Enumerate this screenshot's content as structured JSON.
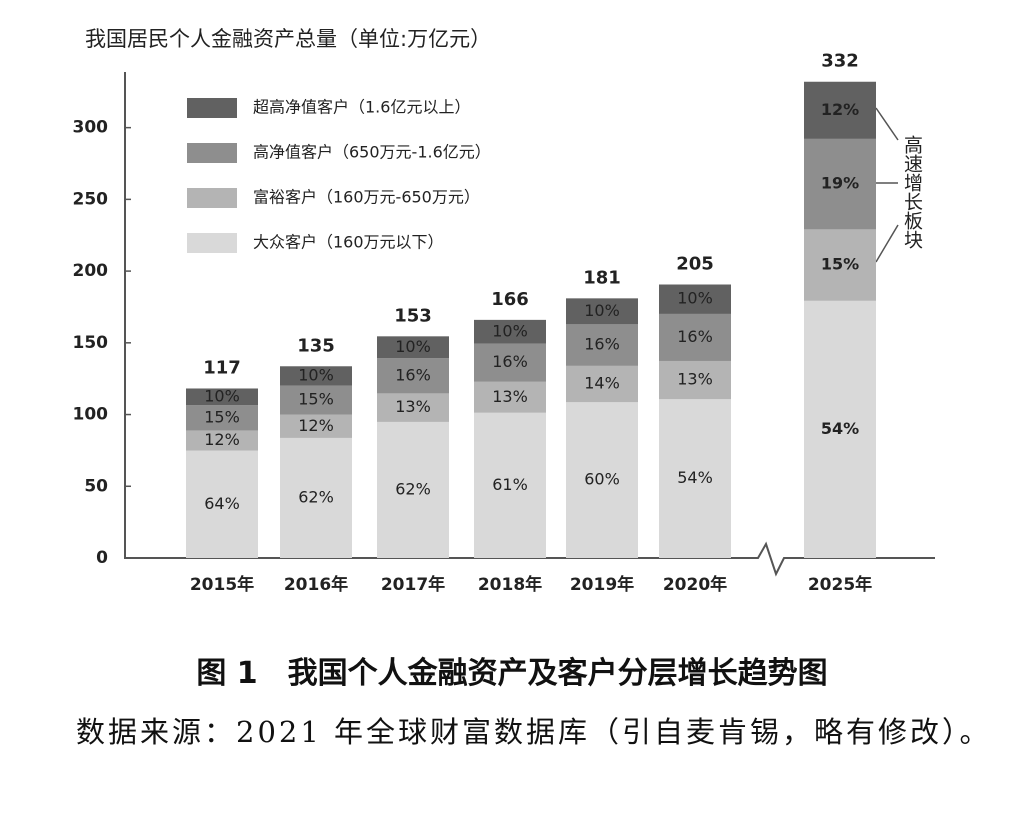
{
  "chart_data": {
    "type": "bar",
    "title": "我国居民个人金融资产总量（单位:万亿元）",
    "categories": [
      "2015年",
      "2016年",
      "2017年",
      "2018年",
      "2019年",
      "2020年",
      "2025年"
    ],
    "totals": [
      117,
      135,
      153,
      166,
      181,
      205,
      332
    ],
    "series": [
      {
        "name": "大众客户（160万元以下）",
        "color": "#d9d9d9",
        "values": [
          64,
          62,
          62,
          61,
          60,
          54,
          54
        ],
        "value_labels": [
          "64%",
          "62%",
          "62%",
          "61%",
          "60%",
          "54%",
          "54%"
        ]
      },
      {
        "name": "富裕客户（160万元-650万元）",
        "color": "#b4b4b4",
        "values": [
          12,
          12,
          13,
          13,
          14,
          13,
          15
        ],
        "value_labels": [
          "12%",
          "12%",
          "13%",
          "13%",
          "14%",
          "13%",
          "15%"
        ]
      },
      {
        "name": "高净值客户（650万元-1.6亿元）",
        "color": "#8e8e8e",
        "values": [
          15,
          15,
          16,
          16,
          16,
          16,
          19
        ],
        "value_labels": [
          "15%",
          "15%",
          "16%",
          "16%",
          "16%",
          "16%",
          "19%"
        ]
      },
      {
        "name": "超高净值客户（1.6亿元以上）",
        "color": "#616161",
        "values": [
          10,
          10,
          10,
          10,
          10,
          10,
          12
        ],
        "value_labels": [
          "10%",
          "10%",
          "10%",
          "10%",
          "10%",
          "10%",
          "12%"
        ]
      }
    ],
    "ylim": [
      0,
      336
    ],
    "yticks": [
      0,
      50,
      100,
      150,
      200,
      250,
      300
    ],
    "annotation": "高速增长板块",
    "caption": "图 1　我国个人金融资产及客户分层增长趋势图",
    "source": "数据来源：2021 年全球财富数据库（引自麦肯锡，略有修改）。"
  }
}
